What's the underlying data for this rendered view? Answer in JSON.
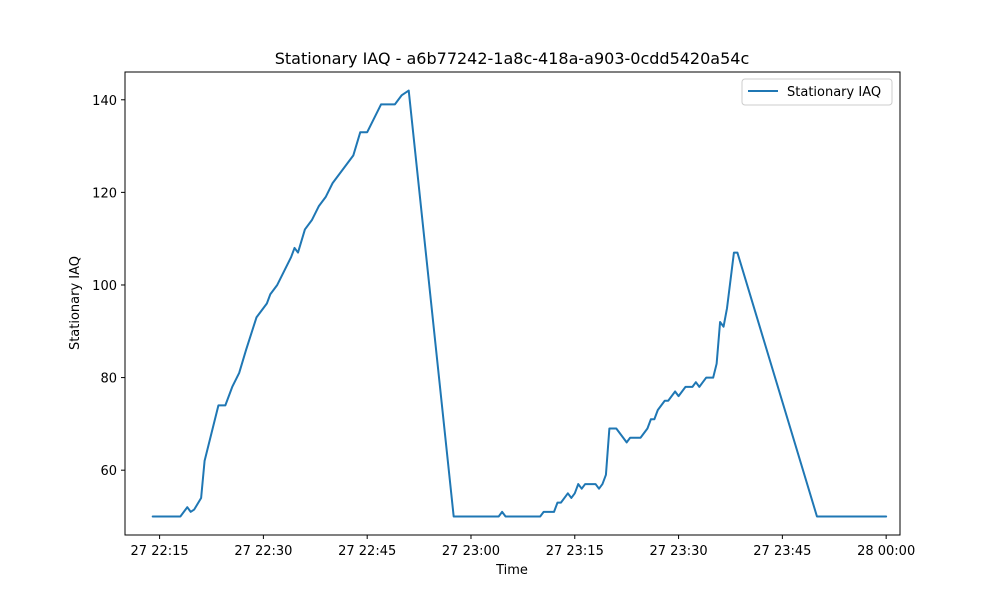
{
  "chart_data": {
    "type": "line",
    "title": "Stationary IAQ - a6b77242-1a8c-418a-a903-0cdd5420a54c",
    "xlabel": "Time",
    "ylabel": "Stationary IAQ",
    "xlim": [
      "27 22:10",
      "28 00:02"
    ],
    "ylim": [
      46,
      146
    ],
    "xticks": [
      {
        "t": "27 22:15",
        "label": "27 22:15"
      },
      {
        "t": "27 22:30",
        "label": "27 22:30"
      },
      {
        "t": "27 22:45",
        "label": "27 22:45"
      },
      {
        "t": "27 23:00",
        "label": "27 23:00"
      },
      {
        "t": "27 23:15",
        "label": "27 23:15"
      },
      {
        "t": "27 23:30",
        "label": "27 23:30"
      },
      {
        "t": "27 23:45",
        "label": "27 23:45"
      },
      {
        "t": "28 00:00",
        "label": "28 00:00"
      }
    ],
    "yticks": [
      60,
      80,
      100,
      120,
      140
    ],
    "grid": false,
    "legend_position": "upper right",
    "series": [
      {
        "name": "Stationary IAQ",
        "color": "#1f77b4",
        "points": [
          [
            "27 22:14",
            50
          ],
          [
            "27 22:18",
            50
          ],
          [
            "27 22:19",
            52
          ],
          [
            "27 22:19:30",
            51
          ],
          [
            "27 22:20",
            51.5
          ],
          [
            "27 22:21",
            54
          ],
          [
            "27 22:21:30",
            62
          ],
          [
            "27 22:22:30",
            68
          ],
          [
            "27 22:23:30",
            74
          ],
          [
            "27 22:24:30",
            74
          ],
          [
            "27 22:25",
            76
          ],
          [
            "27 22:25:30",
            78
          ],
          [
            "27 22:26:30",
            81
          ],
          [
            "27 22:27:30",
            86
          ],
          [
            "27 22:29",
            93
          ],
          [
            "27 22:30:30",
            96
          ],
          [
            "27 22:31",
            98
          ],
          [
            "27 22:32",
            100
          ],
          [
            "27 22:33",
            103
          ],
          [
            "27 22:34",
            106
          ],
          [
            "27 22:34:30",
            108
          ],
          [
            "27 22:35",
            107
          ],
          [
            "27 22:36",
            112
          ],
          [
            "27 22:37",
            114
          ],
          [
            "27 22:38",
            117
          ],
          [
            "27 22:39",
            119
          ],
          [
            "27 22:40",
            122
          ],
          [
            "27 22:41",
            124
          ],
          [
            "27 22:42",
            126
          ],
          [
            "27 22:43",
            128
          ],
          [
            "27 22:44",
            133
          ],
          [
            "27 22:45",
            133
          ],
          [
            "27 22:46",
            136
          ],
          [
            "27 22:47",
            139
          ],
          [
            "27 22:48",
            139
          ],
          [
            "27 22:49",
            139
          ],
          [
            "27 22:50",
            141
          ],
          [
            "27 22:51",
            142
          ],
          [
            "27 22:57:30",
            50
          ],
          [
            "27 23:04",
            50
          ],
          [
            "27 23:04:30",
            51
          ],
          [
            "27 23:05",
            50
          ],
          [
            "27 23:10",
            50
          ],
          [
            "27 23:10:30",
            51
          ],
          [
            "27 23:12",
            51
          ],
          [
            "27 23:12:30",
            53
          ],
          [
            "27 23:13",
            53
          ],
          [
            "27 23:14",
            55
          ],
          [
            "27 23:14:30",
            54
          ],
          [
            "27 23:15",
            55
          ],
          [
            "27 23:15:30",
            57
          ],
          [
            "27 23:16",
            56
          ],
          [
            "27 23:16:30",
            57
          ],
          [
            "27 23:18",
            57
          ],
          [
            "27 23:18:30",
            56
          ],
          [
            "27 23:19",
            57
          ],
          [
            "27 23:19:30",
            59
          ],
          [
            "27 23:20",
            69
          ],
          [
            "27 23:21",
            69
          ],
          [
            "27 23:22",
            67
          ],
          [
            "27 23:22:30",
            66
          ],
          [
            "27 23:23",
            67
          ],
          [
            "27 23:24",
            67
          ],
          [
            "27 23:24:30",
            67
          ],
          [
            "27 23:25",
            68
          ],
          [
            "27 23:25:30",
            69
          ],
          [
            "27 23:26",
            71
          ],
          [
            "27 23:26:30",
            71
          ],
          [
            "27 23:27",
            73
          ],
          [
            "27 23:28",
            75
          ],
          [
            "27 23:28:30",
            75
          ],
          [
            "27 23:29",
            76
          ],
          [
            "27 23:29:30",
            77
          ],
          [
            "27 23:30",
            76
          ],
          [
            "27 23:31",
            78
          ],
          [
            "27 23:32",
            78
          ],
          [
            "27 23:32:30",
            79
          ],
          [
            "27 23:33",
            78
          ],
          [
            "27 23:33:30",
            79
          ],
          [
            "27 23:34",
            80
          ],
          [
            "27 23:35",
            80
          ],
          [
            "27 23:35:30",
            83
          ],
          [
            "27 23:36",
            92
          ],
          [
            "27 23:36:30",
            91
          ],
          [
            "27 23:37",
            95
          ],
          [
            "27 23:38",
            107
          ],
          [
            "27 23:38:30",
            107
          ],
          [
            "27 23:50",
            50
          ],
          [
            "28 00:00",
            50
          ]
        ]
      }
    ]
  }
}
